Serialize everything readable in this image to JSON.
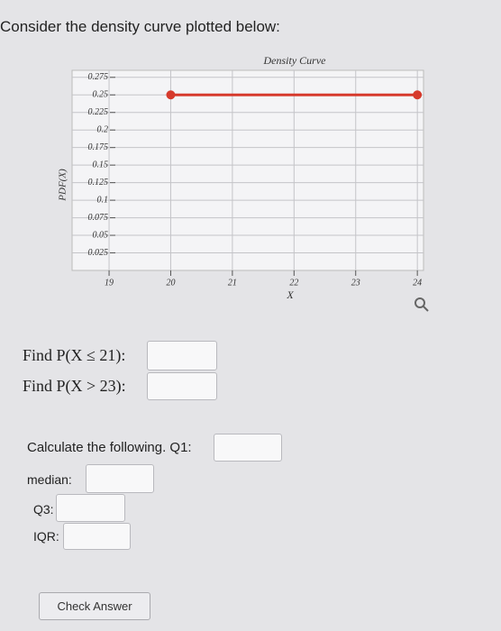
{
  "question": "Consider the density curve plotted below:",
  "chart_data": {
    "type": "line",
    "title": "Density Curve",
    "xlabel": "X",
    "ylabel": "PDF(X)",
    "x": [
      20,
      24
    ],
    "values": [
      0.25,
      0.25
    ],
    "color": "#d63a2c",
    "xlim": [
      18.4,
      24.1
    ],
    "xticks": [
      19,
      20,
      21,
      22,
      23,
      24
    ],
    "ylim": [
      0,
      0.285
    ],
    "yticks": [
      0.025,
      0.05,
      0.075,
      0.1,
      0.125,
      0.15,
      0.175,
      0.2,
      0.225,
      0.25,
      0.275
    ],
    "grid": true
  },
  "form": {
    "prob_le": "Find P(X ≤ 21):",
    "prob_gt": "Find P(X > 23):",
    "q1": "Calculate the following. Q1:",
    "median": "median:",
    "q3": "Q3:",
    "iqr": "IQR:",
    "button": "Check Answer"
  }
}
